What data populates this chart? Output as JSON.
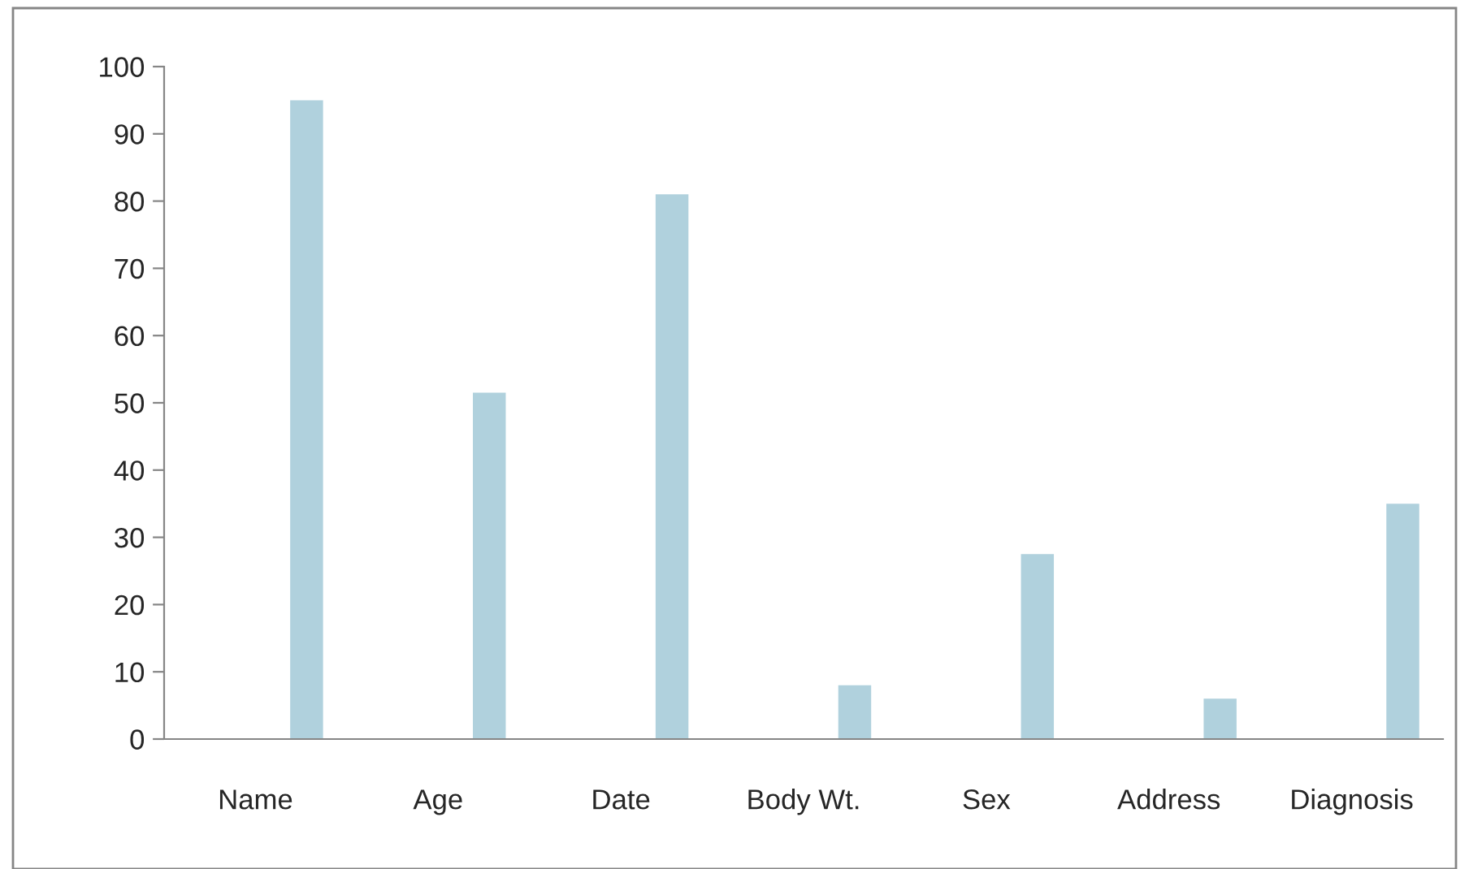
{
  "chart_data": {
    "type": "bar",
    "categories": [
      "Name",
      "Age",
      "Date",
      "Body Wt.",
      "Sex",
      "Address",
      "Diagnosis"
    ],
    "values": [
      95,
      51.5,
      81,
      8,
      27.5,
      6,
      35
    ],
    "color": "#b0d1dd",
    "ylim": [
      0,
      100
    ],
    "yticks": [
      0,
      10,
      20,
      30,
      40,
      50,
      60,
      70,
      80,
      90,
      100
    ],
    "grid": false
  }
}
